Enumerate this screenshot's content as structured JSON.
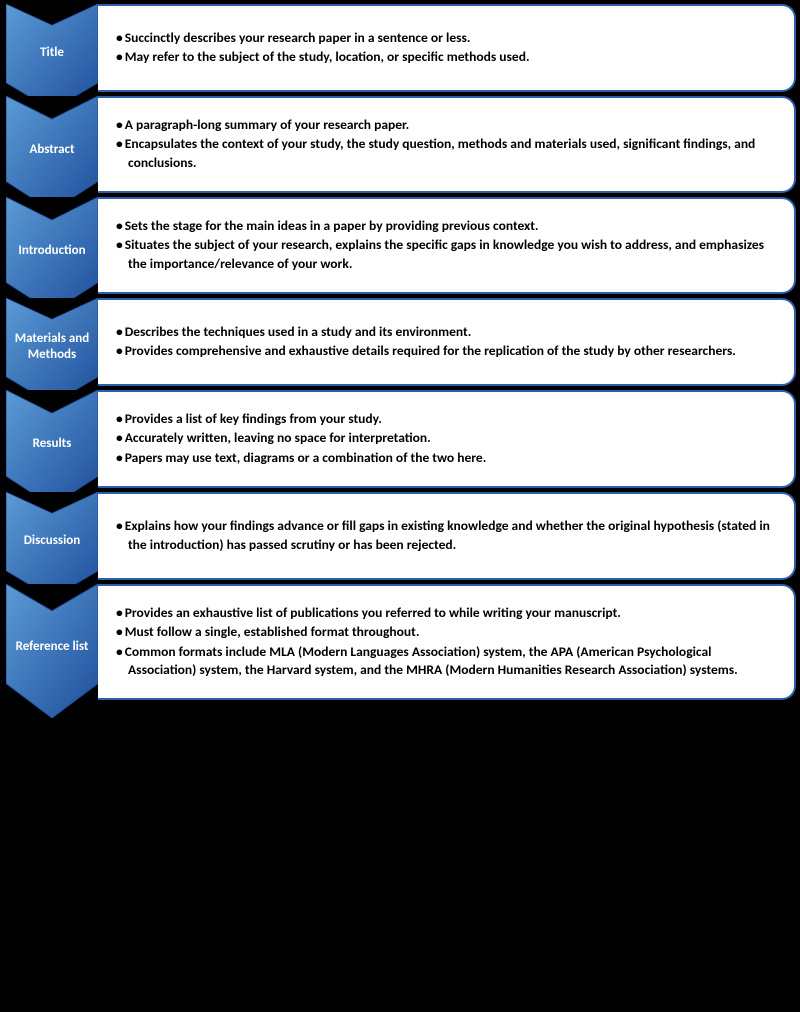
{
  "diagram": {
    "type": "flowchart",
    "direction": "vertical",
    "chevron_gradient": {
      "from": "#5b9bd5",
      "to": "#1f4e9c"
    },
    "chevron_text_color": "#ffffff",
    "content_border_color": "#2e5fac",
    "content_background": "#ffffff",
    "content_text_color": "#000000",
    "page_background": "#000000",
    "label_fontsize": 13,
    "bullet_fontsize": 13.5,
    "sections": [
      {
        "label": "Title",
        "bullets": [
          "Succinctly describes your research paper in a sentence or less.",
          "May refer to the subject of the study, location, or specific methods used."
        ]
      },
      {
        "label": "Abstract",
        "bullets": [
          "A paragraph-long summary of your research paper.",
          "Encapsulates the context of your study, the study question, methods and materials used, significant findings, and conclusions."
        ]
      },
      {
        "label": "Introduction",
        "bullets": [
          "Sets the stage for the main ideas in a paper by providing previous context.",
          "Situates the subject of your research, explains the specific gaps in knowledge you wish to address, and emphasizes the importance/relevance of your work."
        ]
      },
      {
        "label": "Materials and Methods",
        "bullets": [
          "Describes the techniques used in a study and its environment.",
          "Provides comprehensive and exhaustive details required for the replication of the study by other researchers."
        ]
      },
      {
        "label": "Results",
        "bullets": [
          "Provides a list of key findings from your study.",
          "Accurately written, leaving no space for interpretation.",
          "Papers may use text, diagrams or a combination of the two here."
        ]
      },
      {
        "label": "Discussion",
        "bullets": [
          "Explains how your findings advance or fill gaps in existing knowledge and whether the original hypothesis (stated in the introduction) has passed scrutiny or has been rejected."
        ]
      },
      {
        "label": "Reference list",
        "bullets": [
          "Provides an exhaustive list of publications you referred to while writing your manuscript.",
          "Must follow a single, established format throughout.",
          "Common formats include MLA (Modern Languages Association) system, the APA (American Psychological Association) system, the Harvard system, and the MHRA (Modern Humanities Research Association) systems."
        ]
      }
    ]
  }
}
